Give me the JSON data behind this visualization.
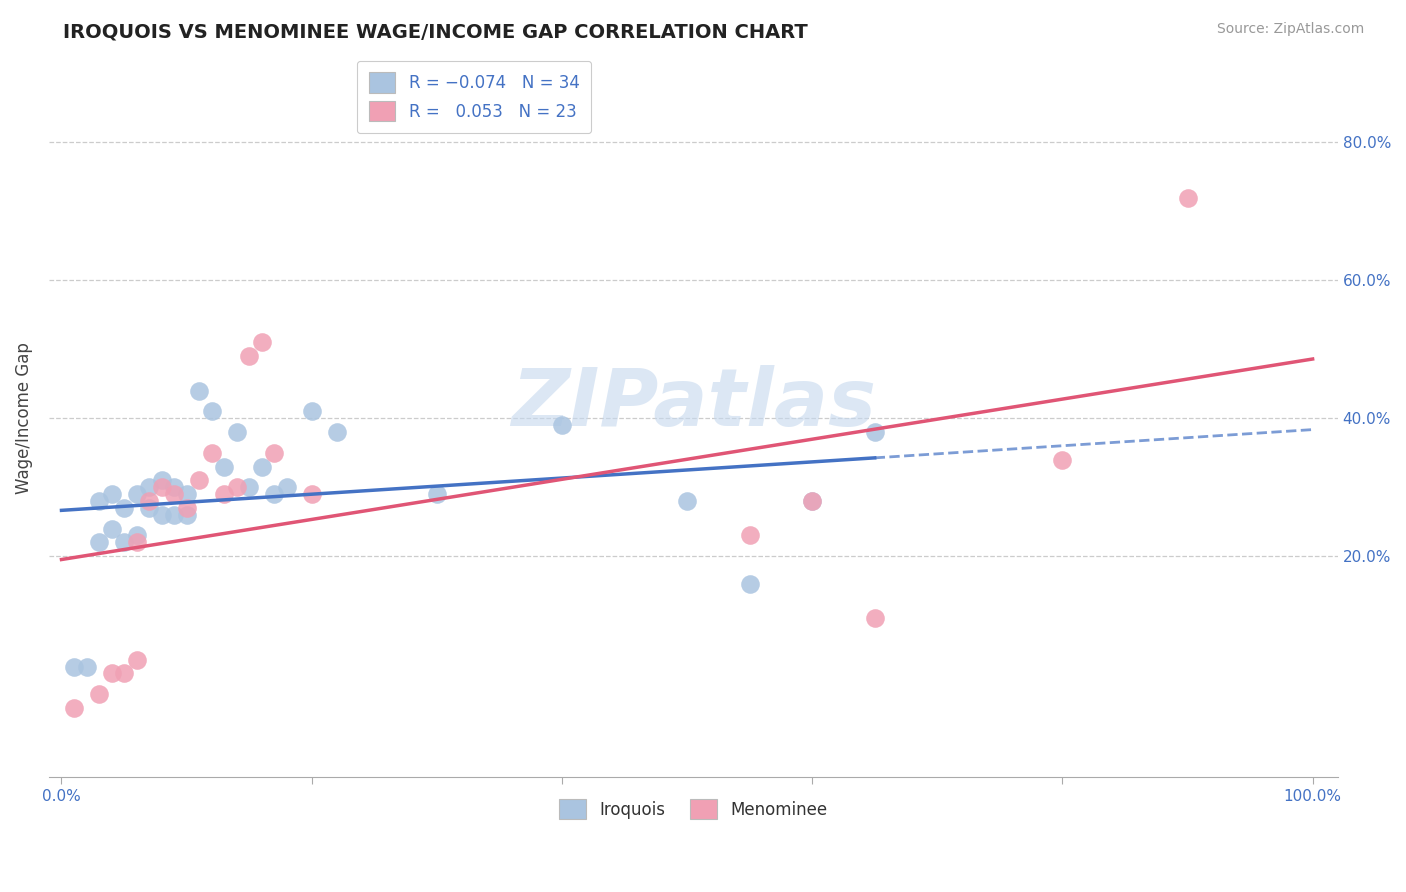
{
  "title": "IROQUOIS VS MENOMINEE WAGE/INCOME GAP CORRELATION CHART",
  "source": "Source: ZipAtlas.com",
  "ylabel": "Wage/Income Gap",
  "xlim": [
    -0.01,
    1.02
  ],
  "ylim": [
    -0.12,
    0.92
  ],
  "ytick_vals": [
    0.2,
    0.4,
    0.6,
    0.8
  ],
  "ytick_labels": [
    "20.0%",
    "40.0%",
    "60.0%",
    "80.0%"
  ],
  "xtick_vals": [
    0.0,
    0.2,
    0.4,
    0.6,
    0.8,
    1.0
  ],
  "xtick_labels": [
    "0.0%",
    "",
    "",
    "",
    "",
    "100.0%"
  ],
  "grid_color": "#cccccc",
  "bg_color": "#ffffff",
  "watermark": "ZIPatlas",
  "iroquois_color": "#aac4e0",
  "menominee_color": "#f0a0b4",
  "iroquois_line_color": "#4472c4",
  "menominee_line_color": "#e05575",
  "label_color": "#4472c4",
  "iroquois_x": [
    0.01,
    0.02,
    0.03,
    0.03,
    0.04,
    0.04,
    0.05,
    0.05,
    0.06,
    0.06,
    0.07,
    0.07,
    0.08,
    0.08,
    0.09,
    0.09,
    0.1,
    0.1,
    0.11,
    0.12,
    0.13,
    0.14,
    0.15,
    0.16,
    0.17,
    0.18,
    0.2,
    0.22,
    0.3,
    0.4,
    0.5,
    0.55,
    0.6,
    0.65
  ],
  "iroquois_y": [
    0.04,
    0.04,
    0.28,
    0.22,
    0.24,
    0.29,
    0.22,
    0.27,
    0.23,
    0.29,
    0.27,
    0.3,
    0.26,
    0.31,
    0.26,
    0.3,
    0.26,
    0.29,
    0.44,
    0.41,
    0.33,
    0.38,
    0.3,
    0.33,
    0.29,
    0.3,
    0.41,
    0.38,
    0.29,
    0.39,
    0.28,
    0.16,
    0.28,
    0.38
  ],
  "menominee_x": [
    0.01,
    0.03,
    0.04,
    0.05,
    0.06,
    0.06,
    0.07,
    0.08,
    0.09,
    0.1,
    0.11,
    0.12,
    0.13,
    0.14,
    0.15,
    0.16,
    0.17,
    0.2,
    0.55,
    0.6,
    0.65,
    0.8,
    0.9
  ],
  "menominee_y": [
    -0.02,
    0.0,
    0.03,
    0.03,
    0.05,
    0.22,
    0.28,
    0.3,
    0.29,
    0.27,
    0.31,
    0.35,
    0.29,
    0.3,
    0.49,
    0.51,
    0.35,
    0.29,
    0.23,
    0.28,
    0.11,
    0.34,
    0.72
  ]
}
